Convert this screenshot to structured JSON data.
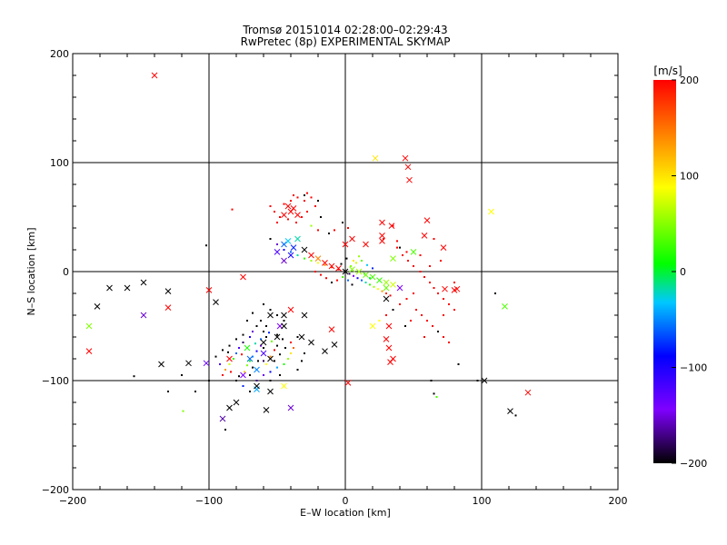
{
  "chart_data": {
    "type": "scatter",
    "title": "Tromsø 20151014 02:28:00–02:29:43",
    "subtitle": "RwPretec (8p) EXPERIMENTAL SKYMAP",
    "xlabel": "E–W location [km]",
    "ylabel": "N–S location [km]",
    "xlim": [
      -200,
      200
    ],
    "ylim": [
      -200,
      200
    ],
    "xticks": [
      "−200",
      "−100",
      "0",
      "100",
      "200"
    ],
    "yticks": [
      "−200",
      "−100",
      "0",
      "100",
      "200"
    ],
    "grid": true,
    "colorbar": {
      "label": "[m/s]",
      "min": -200,
      "max": 200,
      "ticks": [
        "200",
        "100",
        "0",
        "−100",
        "−200"
      ],
      "colors": [
        "#000000",
        "#7f00ff",
        "#0000ff",
        "#00c8ff",
        "#00ff00",
        "#ffff00",
        "#ff8000",
        "#ff0000"
      ]
    },
    "points_cross": [
      [
        -140,
        180,
        200
      ],
      [
        22,
        104,
        110
      ],
      [
        44,
        104,
        200
      ],
      [
        46,
        96,
        200
      ],
      [
        47,
        84,
        200
      ],
      [
        107,
        55,
        100
      ],
      [
        -72,
        -70,
        10
      ],
      [
        -60,
        -75,
        -120
      ],
      [
        -55,
        -80,
        -200
      ],
      [
        -65,
        -90,
        -50
      ],
      [
        -75,
        -95,
        -140
      ],
      [
        -85,
        -80,
        200
      ],
      [
        -80,
        -120,
        -200
      ],
      [
        -85,
        -125,
        -200
      ],
      [
        -90,
        -135,
        -160
      ],
      [
        -70,
        -80,
        -60
      ],
      [
        -60,
        -65,
        -200
      ],
      [
        -50,
        -60,
        -200
      ],
      [
        -40,
        -125,
        -150
      ],
      [
        -58,
        -127,
        -200
      ],
      [
        -45,
        -105,
        100
      ],
      [
        -55,
        -110,
        -200
      ],
      [
        -65,
        -108,
        -40
      ],
      [
        -102,
        -84,
        -130
      ],
      [
        -115,
        -84,
        -200
      ],
      [
        -135,
        -85,
        -200
      ],
      [
        -148,
        -40,
        -150
      ],
      [
        -148,
        -10,
        -200
      ],
      [
        -160,
        -15,
        -200
      ],
      [
        -173,
        -15,
        -200
      ],
      [
        -182,
        -32,
        -200
      ],
      [
        -188,
        -73,
        200
      ],
      [
        -188,
        -50,
        50
      ],
      [
        -130,
        -33,
        200
      ],
      [
        -130,
        -18,
        -200
      ],
      [
        -100,
        -17,
        200
      ],
      [
        -95,
        -28,
        -200
      ],
      [
        -75,
        -5,
        200
      ],
      [
        -55,
        -40,
        -200
      ],
      [
        -48,
        -50,
        -140
      ],
      [
        -45,
        -40,
        -200
      ],
      [
        -40,
        -35,
        200
      ],
      [
        -30,
        -40,
        -200
      ],
      [
        -25,
        -65,
        -200
      ],
      [
        -15,
        -73,
        -200
      ],
      [
        -10,
        -53,
        200
      ],
      [
        -8,
        -67,
        -200
      ],
      [
        2,
        -102,
        200
      ],
      [
        -40,
        55,
        200
      ],
      [
        -35,
        52,
        200
      ],
      [
        -45,
        52,
        200
      ],
      [
        -42,
        60,
        200
      ],
      [
        -38,
        58,
        200
      ],
      [
        -50,
        18,
        -120
      ],
      [
        -45,
        25,
        -60
      ],
      [
        -42,
        28,
        -30
      ],
      [
        -38,
        22,
        -80
      ],
      [
        -35,
        30,
        -20
      ],
      [
        -40,
        15,
        -100
      ],
      [
        -45,
        10,
        -150
      ],
      [
        -30,
        20,
        -200
      ],
      [
        -25,
        15,
        200
      ],
      [
        -20,
        12,
        150
      ],
      [
        -15,
        8,
        200
      ],
      [
        -10,
        5,
        200
      ],
      [
        -5,
        3,
        200
      ],
      [
        0,
        0,
        -200
      ],
      [
        5,
        2,
        50
      ],
      [
        10,
        0,
        60
      ],
      [
        15,
        -3,
        40
      ],
      [
        20,
        -5,
        30
      ],
      [
        25,
        -8,
        20
      ],
      [
        30,
        -10,
        60
      ],
      [
        35,
        -12,
        80
      ],
      [
        40,
        -15,
        -140
      ],
      [
        0,
        25,
        200
      ],
      [
        5,
        30,
        200
      ],
      [
        15,
        25,
        200
      ],
      [
        27,
        33,
        200
      ],
      [
        27,
        28,
        200
      ],
      [
        27,
        45,
        200
      ],
      [
        34,
        42,
        200
      ],
      [
        58,
        33,
        200
      ],
      [
        60,
        47,
        200
      ],
      [
        72,
        22,
        200
      ],
      [
        73,
        -16,
        200
      ],
      [
        80,
        -17,
        200
      ],
      [
        82,
        -16,
        200
      ],
      [
        32,
        -50,
        200
      ],
      [
        30,
        -62,
        200
      ],
      [
        32,
        -70,
        200
      ],
      [
        35,
        -80,
        200
      ],
      [
        33,
        -83,
        200
      ],
      [
        20,
        -50,
        100
      ],
      [
        50,
        18,
        30
      ],
      [
        35,
        12,
        50
      ],
      [
        30,
        -15,
        40
      ],
      [
        30,
        -25,
        -200
      ],
      [
        -32,
        -60,
        -200
      ],
      [
        -45,
        -50,
        -200
      ],
      [
        117,
        -32,
        30
      ],
      [
        121,
        -128,
        -200
      ],
      [
        134,
        -111,
        200
      ],
      [
        102,
        -100,
        -200
      ],
      [
        -65,
        -105,
        -200
      ]
    ],
    "points_dot": [
      [
        -140,
        180,
        200
      ],
      [
        -102,
        24,
        -200
      ],
      [
        -119,
        -128,
        50
      ],
      [
        -120,
        -95,
        -200
      ],
      [
        -155,
        -96,
        -200
      ],
      [
        -110,
        -110,
        -200
      ],
      [
        -130,
        -110,
        -200
      ],
      [
        -100,
        -100,
        -200
      ],
      [
        -88,
        -145,
        -200
      ],
      [
        -60,
        -70,
        -200
      ],
      [
        -62,
        -68,
        -150
      ],
      [
        -65,
        -73,
        -100
      ],
      [
        -68,
        -78,
        -50
      ],
      [
        -70,
        -82,
        0
      ],
      [
        -72,
        -86,
        50
      ],
      [
        -58,
        -85,
        100
      ],
      [
        -55,
        -78,
        150
      ],
      [
        -52,
        -72,
        200
      ],
      [
        -50,
        -68,
        -200
      ],
      [
        -75,
        -65,
        -180
      ],
      [
        -78,
        -70,
        -120
      ],
      [
        -80,
        -75,
        -60
      ],
      [
        -82,
        -80,
        20
      ],
      [
        -85,
        -85,
        80
      ],
      [
        -88,
        -90,
        140
      ],
      [
        -90,
        -95,
        200
      ],
      [
        -70,
        -95,
        -200
      ],
      [
        -65,
        -100,
        -170
      ],
      [
        -60,
        -95,
        -130
      ],
      [
        -55,
        -92,
        -90
      ],
      [
        -50,
        -88,
        -40
      ],
      [
        -45,
        -85,
        10
      ],
      [
        -42,
        -80,
        60
      ],
      [
        -40,
        -75,
        110
      ],
      [
        -38,
        -70,
        160
      ],
      [
        -40,
        -65,
        200
      ],
      [
        -60,
        -55,
        -200
      ],
      [
        -58,
        -50,
        -200
      ],
      [
        -62,
        -45,
        -200
      ],
      [
        -65,
        -50,
        -200
      ],
      [
        -68,
        -55,
        -150
      ],
      [
        -70,
        -60,
        -100
      ],
      [
        -75,
        -58,
        -200
      ],
      [
        -80,
        -62,
        -200
      ],
      [
        -85,
        -68,
        -200
      ],
      [
        -90,
        -72,
        -200
      ],
      [
        -95,
        -78,
        -200
      ],
      [
        -92,
        -85,
        -120
      ],
      [
        -80,
        -100,
        -200
      ],
      [
        -75,
        -105,
        -80
      ],
      [
        -70,
        -110,
        -200
      ],
      [
        -55,
        -100,
        -200
      ],
      [
        -48,
        -95,
        -200
      ],
      [
        -35,
        -90,
        -200
      ],
      [
        -32,
        -82,
        -200
      ],
      [
        -30,
        -75,
        -200
      ],
      [
        -35,
        -60,
        -200
      ],
      [
        -45,
        -45,
        -200
      ],
      [
        -50,
        -40,
        -200
      ],
      [
        -55,
        -35,
        -200
      ],
      [
        -60,
        -30,
        -200
      ],
      [
        -68,
        -38,
        -200
      ],
      [
        -72,
        -45,
        -200
      ],
      [
        -62,
        -62,
        -60
      ],
      [
        -66,
        -66,
        -20
      ],
      [
        -54,
        -64,
        40
      ],
      [
        -58,
        -60,
        -200
      ],
      [
        -64,
        -82,
        -200
      ],
      [
        -68,
        -88,
        -200
      ],
      [
        -74,
        -92,
        120
      ],
      [
        -78,
        -96,
        -200
      ],
      [
        -84,
        -92,
        200
      ],
      [
        -86,
        -74,
        -200
      ],
      [
        -76,
        -76,
        200
      ],
      [
        -52,
        -82,
        -200
      ],
      [
        -48,
        -76,
        -200
      ],
      [
        -44,
        -70,
        -200
      ],
      [
        -46,
        -62,
        -200
      ],
      [
        -50,
        -58,
        -200
      ],
      [
        -56,
        -56,
        -80
      ],
      [
        -60,
        -82,
        -180
      ],
      [
        -40,
        65,
        200
      ],
      [
        -45,
        62,
        200
      ],
      [
        -35,
        68,
        200
      ],
      [
        -30,
        65,
        200
      ],
      [
        -25,
        68,
        200
      ],
      [
        -38,
        70,
        200
      ],
      [
        -28,
        72,
        200
      ],
      [
        -55,
        60,
        200
      ],
      [
        -52,
        55,
        200
      ],
      [
        -48,
        50,
        200
      ],
      [
        -50,
        45,
        200
      ],
      [
        -42,
        48,
        200
      ],
      [
        -36,
        45,
        200
      ],
      [
        -32,
        50,
        200
      ],
      [
        -28,
        55,
        200
      ],
      [
        -22,
        60,
        200
      ],
      [
        -20,
        65,
        -200
      ],
      [
        -18,
        50,
        -200
      ],
      [
        -25,
        42,
        60
      ],
      [
        -20,
        38,
        200
      ],
      [
        -83,
        57,
        200
      ],
      [
        -30,
        70,
        -200
      ],
      [
        -12,
        35,
        -200
      ],
      [
        -8,
        38,
        200
      ],
      [
        -2,
        45,
        -200
      ],
      [
        2,
        40,
        200
      ],
      [
        -55,
        30,
        -200
      ],
      [
        -50,
        25,
        -150
      ],
      [
        -45,
        20,
        -100
      ],
      [
        -40,
        18,
        -60
      ],
      [
        -35,
        15,
        -20
      ],
      [
        -30,
        12,
        20
      ],
      [
        -25,
        10,
        60
      ],
      [
        -20,
        8,
        100
      ],
      [
        -15,
        6,
        140
      ],
      [
        -10,
        4,
        180
      ],
      [
        -5,
        2,
        200
      ],
      [
        0,
        0,
        -200
      ],
      [
        3,
        -2,
        -180
      ],
      [
        6,
        -4,
        -140
      ],
      [
        9,
        -6,
        -100
      ],
      [
        12,
        -8,
        -60
      ],
      [
        15,
        -10,
        -20
      ],
      [
        18,
        -12,
        20
      ],
      [
        21,
        -14,
        60
      ],
      [
        24,
        -16,
        100
      ],
      [
        27,
        -18,
        140
      ],
      [
        30,
        -20,
        180
      ],
      [
        33,
        -22,
        200
      ],
      [
        -22,
        0,
        200
      ],
      [
        -18,
        -3,
        200
      ],
      [
        -14,
        -6,
        200
      ],
      [
        -10,
        -10,
        -200
      ],
      [
        -6,
        -8,
        200
      ],
      [
        -2,
        -5,
        30
      ],
      [
        4,
        5,
        50
      ],
      [
        8,
        8,
        80
      ],
      [
        12,
        10,
        40
      ],
      [
        16,
        6,
        -30
      ],
      [
        20,
        3,
        -80
      ],
      [
        2,
        -8,
        -60
      ],
      [
        6,
        10,
        110
      ],
      [
        10,
        14,
        60
      ],
      [
        14,
        -2,
        20
      ],
      [
        18,
        -6,
        -10
      ],
      [
        -3,
        7,
        -200
      ],
      [
        1,
        12,
        -200
      ],
      [
        5,
        -12,
        -200
      ],
      [
        38,
        22,
        200
      ],
      [
        42,
        15,
        200
      ],
      [
        46,
        10,
        200
      ],
      [
        50,
        5,
        200
      ],
      [
        55,
        0,
        200
      ],
      [
        58,
        -5,
        200
      ],
      [
        62,
        -10,
        200
      ],
      [
        65,
        -15,
        200
      ],
      [
        68,
        -20,
        200
      ],
      [
        72,
        -25,
        200
      ],
      [
        76,
        -30,
        200
      ],
      [
        80,
        -35,
        200
      ],
      [
        50,
        -20,
        200
      ],
      [
        45,
        -25,
        200
      ],
      [
        40,
        -30,
        200
      ],
      [
        35,
        -35,
        -200
      ],
      [
        30,
        -40,
        200
      ],
      [
        25,
        -45,
        100
      ],
      [
        52,
        -35,
        200
      ],
      [
        56,
        -40,
        200
      ],
      [
        60,
        -45,
        200
      ],
      [
        64,
        -50,
        200
      ],
      [
        68,
        -55,
        -200
      ],
      [
        72,
        -60,
        200
      ],
      [
        76,
        -65,
        200
      ],
      [
        48,
        -45,
        200
      ],
      [
        44,
        -50,
        -200
      ],
      [
        35,
        42,
        200
      ],
      [
        38,
        28,
        200
      ],
      [
        40,
        22,
        -200
      ],
      [
        45,
        18,
        200
      ],
      [
        55,
        15,
        200
      ],
      [
        62,
        5,
        200
      ],
      [
        70,
        10,
        200
      ],
      [
        65,
        30,
        200
      ],
      [
        80,
        -10,
        200
      ],
      [
        83,
        -85,
        -200
      ],
      [
        63,
        -100,
        -200
      ],
      [
        67,
        -115,
        30
      ],
      [
        65,
        -112,
        -200
      ],
      [
        97,
        -100,
        -200
      ],
      [
        110,
        -20,
        -200
      ],
      [
        125,
        -132,
        -200
      ],
      [
        72,
        -40,
        200
      ],
      [
        58,
        -60,
        200
      ],
      [
        28,
        30,
        200
      ]
    ]
  }
}
